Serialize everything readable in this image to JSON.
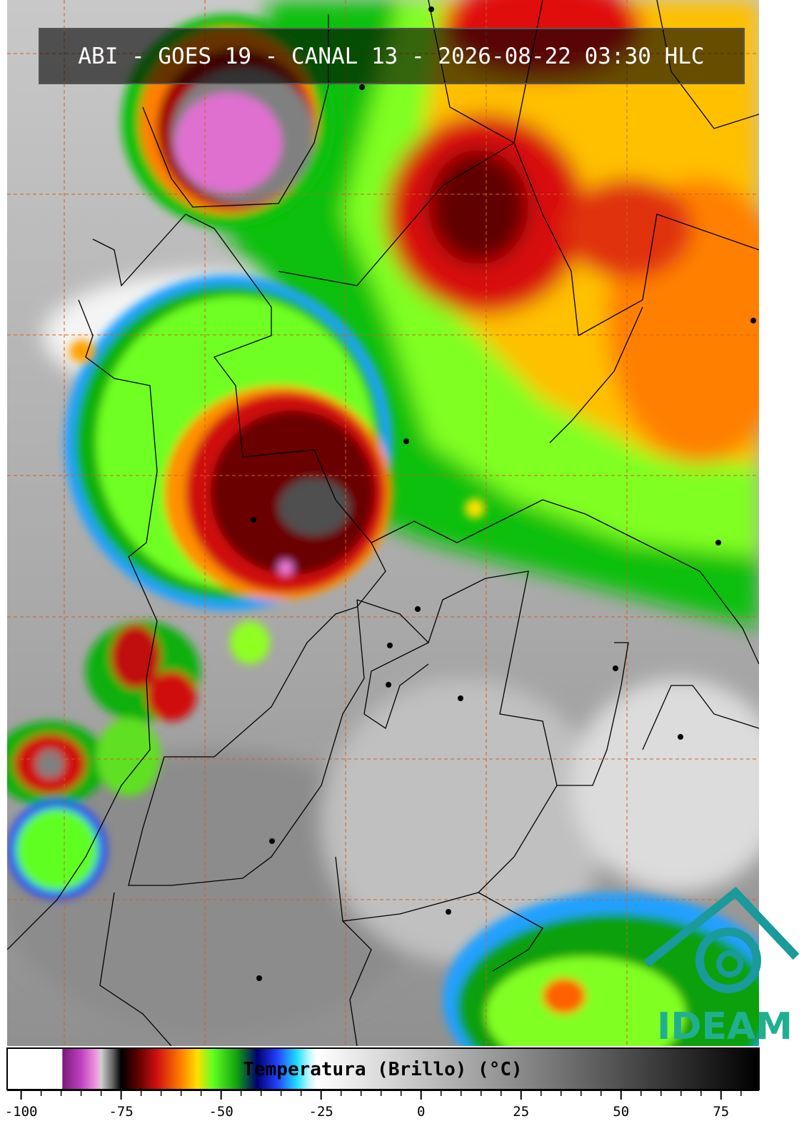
{
  "title": "ABI - GOES 19 - CANAL 13 - 2026-08-22 03:30 HLC",
  "logo": "IDEAM",
  "colorbar": {
    "label": "Temperatura (Brillo) (°C)",
    "range": [
      -103.5,
      84.5
    ],
    "ticks": [
      -100,
      -75,
      -50,
      -25,
      0,
      25,
      50,
      75
    ],
    "minor_ticks": [
      -95,
      -90,
      -85,
      -80,
      -70,
      -65,
      -60,
      -55,
      -45,
      -40,
      -35,
      -30,
      -20,
      -15,
      -10,
      -5,
      5,
      10,
      15,
      20,
      30,
      35,
      40,
      45,
      55,
      60,
      65,
      70,
      80
    ],
    "stops": [
      {
        "value": -103.5,
        "color": "#ffffff"
      },
      {
        "value": -89.8,
        "color": "#ffffff"
      },
      {
        "value": -89.6,
        "color": "#7a1a7a"
      },
      {
        "value": -85,
        "color": "#c040c0"
      },
      {
        "value": -81,
        "color": "#f0a0e0"
      },
      {
        "value": -80,
        "color": "#d0d0d0"
      },
      {
        "value": -77,
        "color": "#606060"
      },
      {
        "value": -75,
        "color": "#000000"
      },
      {
        "value": -71,
        "color": "#5a0000"
      },
      {
        "value": -66,
        "color": "#d01010"
      },
      {
        "value": -60,
        "color": "#ff8000"
      },
      {
        "value": -56,
        "color": "#ffe000"
      },
      {
        "value": -52,
        "color": "#60ff20"
      },
      {
        "value": -46,
        "color": "#10a010"
      },
      {
        "value": -41,
        "color": "#000070"
      },
      {
        "value": -36,
        "color": "#2040ff"
      },
      {
        "value": -31,
        "color": "#20e0ff"
      },
      {
        "value": -28,
        "color": "#c0f8ff"
      },
      {
        "value": -26,
        "color": "#ffffff"
      },
      {
        "value": 84.5,
        "color": "#000000"
      }
    ]
  }
}
